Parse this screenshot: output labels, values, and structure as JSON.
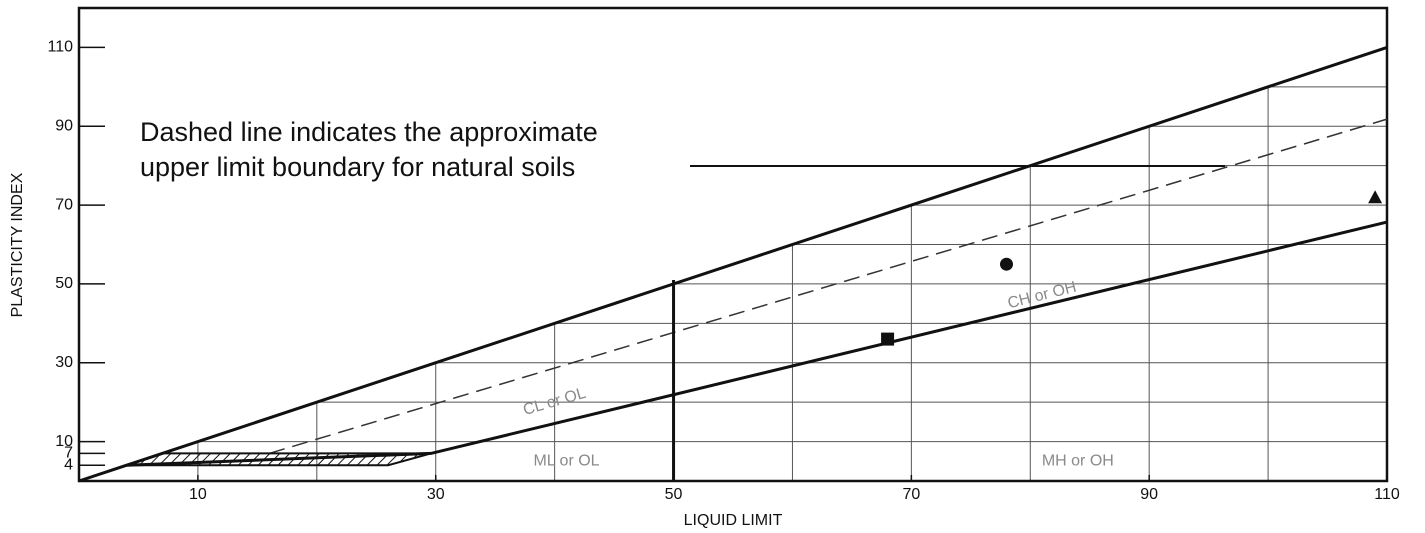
{
  "chart_data": {
    "type": "plasticity",
    "x_label": "LIQUID LIMIT",
    "y_label": "PLASTICITY INDEX",
    "annotation": [
      "Dashed line indicates the approximate",
      "upper limit boundary for natural soils"
    ],
    "regions": [
      "CL or OL",
      "CH or OH",
      "ML or OL",
      "MH or OH"
    ],
    "xlim": [
      0,
      110
    ],
    "ylim": [
      0,
      120
    ],
    "xticks": [
      10,
      30,
      50,
      70,
      90,
      110
    ],
    "yticks": [
      4,
      7,
      10,
      30,
      50,
      70,
      90,
      110
    ],
    "xgrid": [
      10,
      20,
      30,
      40,
      50,
      60,
      70,
      80,
      90,
      100
    ],
    "ygrid": [
      10,
      20,
      30,
      40,
      50,
      60,
      70,
      80,
      90,
      100,
      110
    ],
    "series": [
      {
        "style": "solid",
        "color": "#111111",
        "x": [
          0,
          7,
          110
        ],
        "y": [
          0,
          7,
          110
        ]
      },
      {
        "style": "dashed",
        "color": "#333333",
        "x": [
          16,
          110
        ],
        "y": [
          7,
          91.8
        ]
      },
      {
        "style": "solid",
        "color": "#111111",
        "x": [
          4,
          29.6,
          110
        ],
        "y": [
          4,
          7,
          65.7
        ]
      },
      {
        "style": "solid",
        "color": "#111111",
        "x": [
          50,
          50
        ],
        "y": [
          0,
          51
        ]
      },
      {
        "style": "hatched",
        "color": "#111111",
        "x": [
          4,
          7,
          29.6,
          26,
          4
        ],
        "y": [
          4,
          7,
          7,
          4,
          4
        ]
      },
      {
        "style": "circle",
        "color": "#111111",
        "x": [
          78
        ],
        "y": [
          55
        ]
      },
      {
        "style": "square",
        "color": "#111111",
        "x": [
          68
        ],
        "y": [
          36
        ]
      },
      {
        "style": "triangle",
        "color": "#111111",
        "x": [
          109
        ],
        "y": [
          72
        ]
      }
    ]
  }
}
